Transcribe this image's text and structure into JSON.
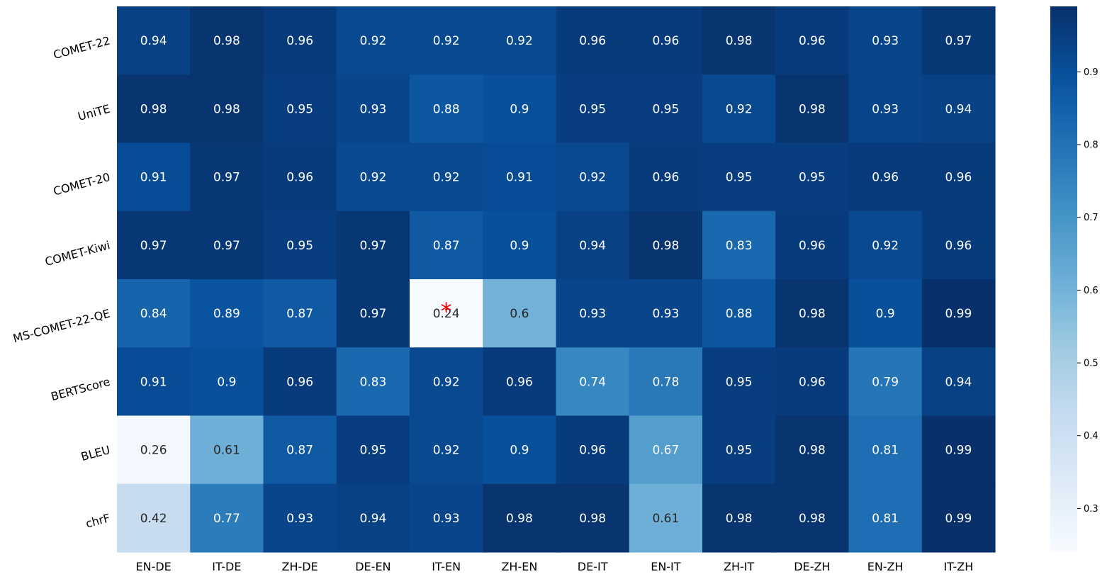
{
  "chart_data": {
    "type": "heatmap",
    "title": "",
    "xlabel": "",
    "ylabel": "",
    "colormap": "Blues",
    "x_categories": [
      "EN-DE",
      "IT-DE",
      "ZH-DE",
      "DE-EN",
      "IT-EN",
      "ZH-EN",
      "DE-IT",
      "EN-IT",
      "ZH-IT",
      "DE-ZH",
      "EN-ZH",
      "IT-ZH"
    ],
    "y_categories": [
      "COMET-22",
      "UniTE",
      "COMET-20",
      "COMET-Kiwi",
      "MS-COMET-22-QE",
      "BERTScore",
      "BLEU",
      "chrF"
    ],
    "values": [
      [
        0.94,
        0.98,
        0.96,
        0.92,
        0.92,
        0.92,
        0.96,
        0.96,
        0.98,
        0.96,
        0.93,
        0.97
      ],
      [
        0.98,
        0.98,
        0.95,
        0.93,
        0.88,
        0.9,
        0.95,
        0.95,
        0.92,
        0.98,
        0.93,
        0.94
      ],
      [
        0.91,
        0.97,
        0.96,
        0.92,
        0.92,
        0.91,
        0.92,
        0.96,
        0.95,
        0.95,
        0.96,
        0.96
      ],
      [
        0.97,
        0.97,
        0.95,
        0.97,
        0.87,
        0.9,
        0.94,
        0.98,
        0.83,
        0.96,
        0.92,
        0.96
      ],
      [
        0.84,
        0.89,
        0.87,
        0.97,
        0.24,
        0.6,
        0.93,
        0.93,
        0.88,
        0.98,
        0.9,
        0.99
      ],
      [
        0.91,
        0.9,
        0.96,
        0.83,
        0.92,
        0.96,
        0.74,
        0.78,
        0.95,
        0.96,
        0.79,
        0.94
      ],
      [
        0.26,
        0.61,
        0.87,
        0.95,
        0.92,
        0.9,
        0.96,
        0.67,
        0.95,
        0.98,
        0.81,
        0.99
      ],
      [
        0.42,
        0.77,
        0.93,
        0.94,
        0.93,
        0.98,
        0.98,
        0.61,
        0.98,
        0.98,
        0.81,
        0.99
      ]
    ],
    "colorbar": {
      "range": [
        0.24,
        0.99
      ],
      "ticks": [
        0.3,
        0.4,
        0.5,
        0.6,
        0.7,
        0.8,
        0.9
      ]
    },
    "annotation": {
      "symbol": "*",
      "row": 4,
      "col": 4,
      "color": "#ff0000"
    }
  }
}
